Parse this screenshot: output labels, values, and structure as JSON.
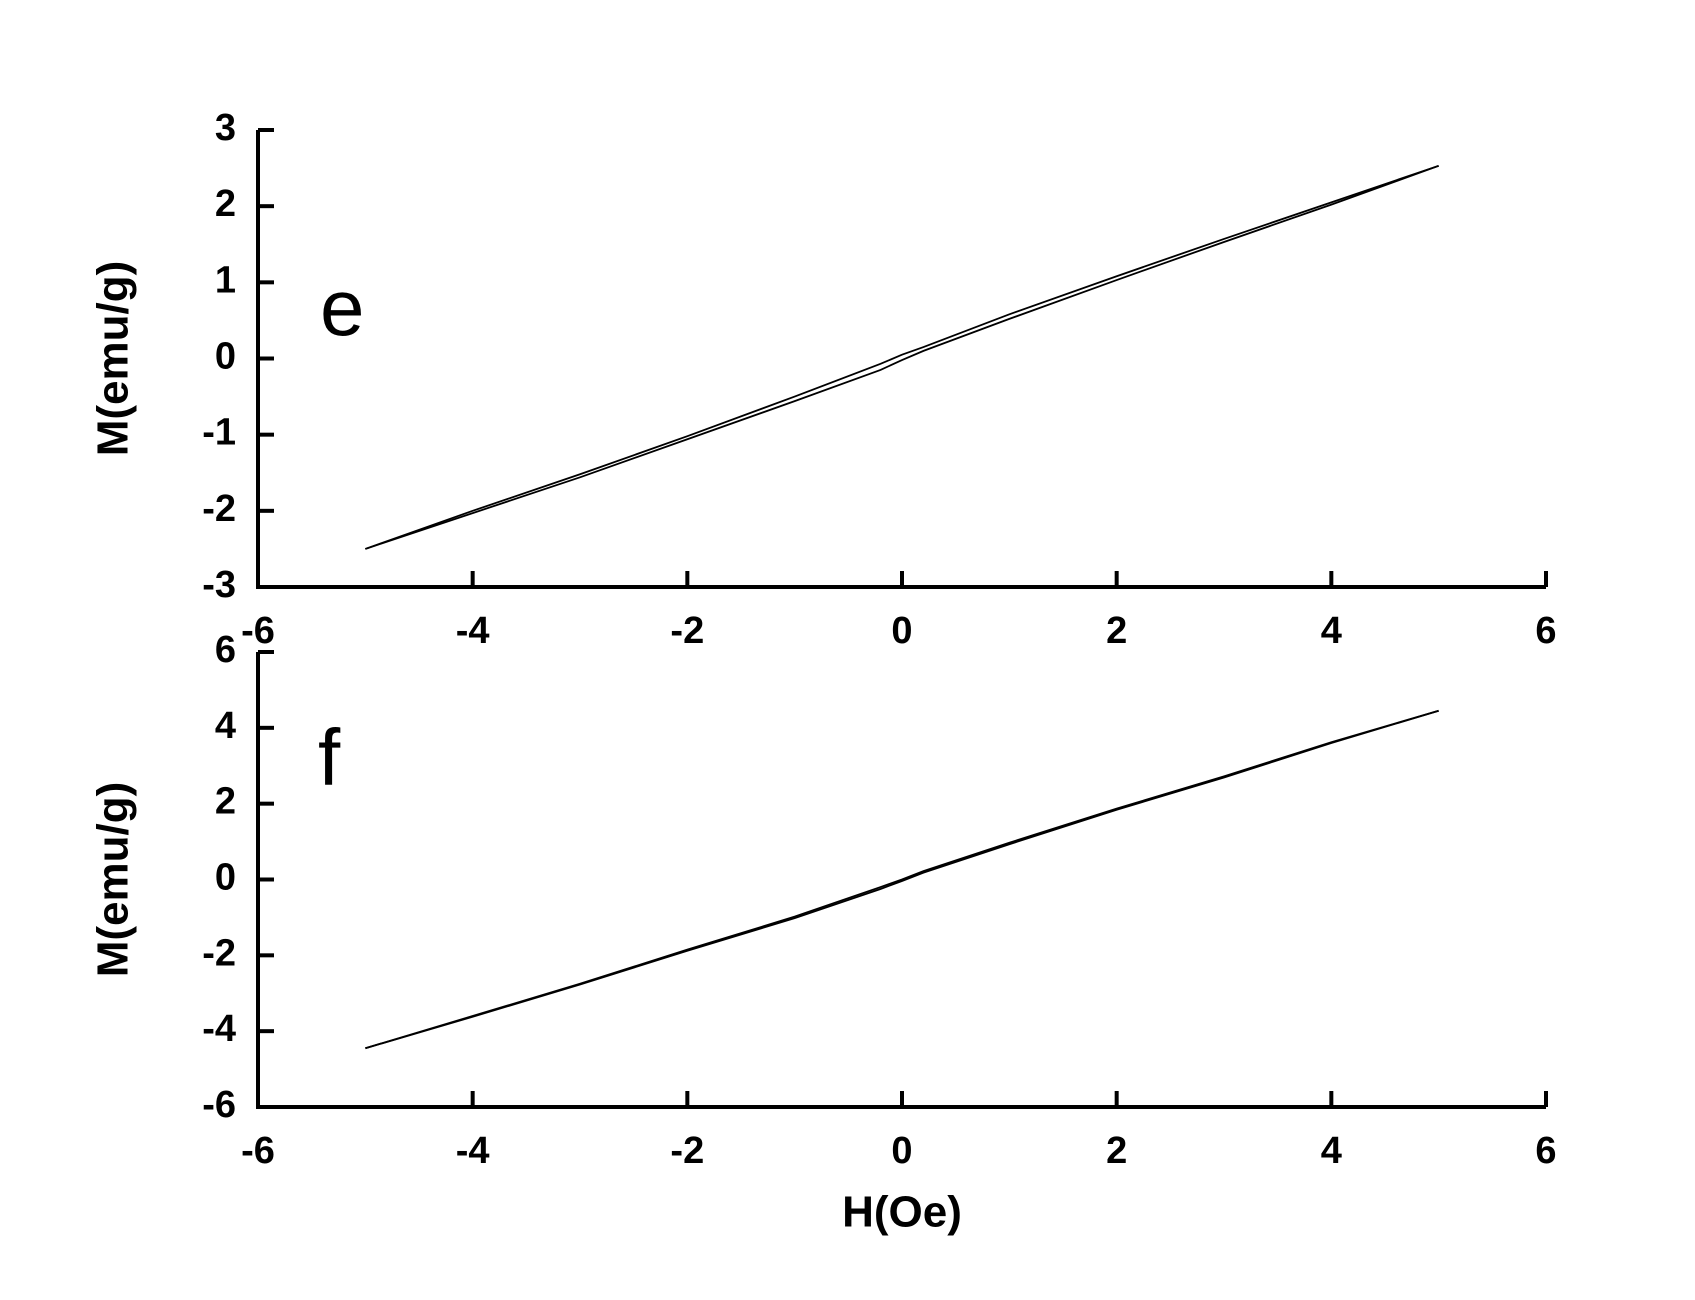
{
  "chart_data": [
    {
      "type": "line",
      "annotation": "e",
      "ylabel": "M(emu/g)",
      "x": [
        -5,
        -4,
        -3,
        -2,
        -1,
        -0.2,
        0,
        0.2,
        1,
        2,
        3,
        4,
        5
      ],
      "series": [
        {
          "color": "#000000",
          "values": [
            -2.5,
            -2.0,
            -1.52,
            -1.02,
            -0.5,
            -0.07,
            0.05,
            0.15,
            0.58,
            1.08,
            1.57,
            2.05,
            2.53
          ]
        },
        {
          "color": "#000000",
          "values": [
            -2.5,
            -2.03,
            -1.56,
            -1.06,
            -0.56,
            -0.15,
            -0.02,
            0.1,
            0.52,
            1.03,
            1.53,
            2.02,
            2.53
          ]
        }
      ],
      "xlim": [
        -6,
        6
      ],
      "xticks": [
        -6,
        -4,
        -2,
        0,
        2,
        4,
        6
      ],
      "ylim": [
        -3,
        3
      ],
      "yticks": [
        -3,
        -2,
        -1,
        0,
        1,
        2,
        3
      ]
    },
    {
      "type": "line",
      "annotation": "f",
      "ylabel": "M(emu/g)",
      "xlabel": "H(Oe)",
      "x": [
        -5,
        -4,
        -3,
        -2,
        -1,
        -0.2,
        0,
        0.2,
        1,
        2,
        3,
        4,
        5
      ],
      "series": [
        {
          "color": "#000000",
          "values": [
            -4.45,
            -3.6,
            -2.75,
            -1.85,
            -0.98,
            -0.2,
            0,
            0.22,
            0.97,
            1.87,
            2.72,
            3.62,
            4.45
          ]
        },
        {
          "color": "#000000",
          "values": [
            -4.45,
            -3.62,
            -2.77,
            -1.88,
            -1.02,
            -0.25,
            -0.04,
            0.18,
            0.93,
            1.84,
            2.69,
            3.6,
            4.45
          ]
        }
      ],
      "xlim": [
        -6,
        6
      ],
      "xticks": [
        -6,
        -4,
        -2,
        0,
        2,
        4,
        6
      ],
      "ylim": [
        -6,
        6
      ],
      "yticks": [
        -6,
        -4,
        -2,
        0,
        2,
        4,
        6
      ]
    }
  ]
}
